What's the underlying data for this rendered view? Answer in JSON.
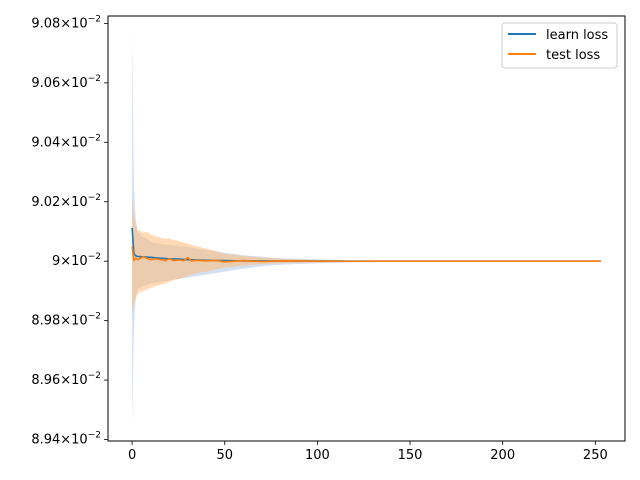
{
  "chart_data": {
    "type": "line",
    "title": "",
    "xlabel": "",
    "ylabel": "",
    "xlim": [
      -13,
      266
    ],
    "ylim": [
      0.089395,
      0.090825
    ],
    "xticks": [
      0,
      50,
      100,
      150,
      200,
      250
    ],
    "xtick_labels": [
      "0",
      "50",
      "100",
      "150",
      "200",
      "250"
    ],
    "yticks": [
      0.0894,
      0.0896,
      0.0898,
      0.09,
      0.0902,
      0.0904,
      0.0906,
      0.0908
    ],
    "ytick_labels": [
      {
        "mantissa": "8.94",
        "exp": "−2"
      },
      {
        "mantissa": "8.96",
        "exp": "−2"
      },
      {
        "mantissa": "8.98",
        "exp": "−2"
      },
      {
        "mantissa": "9",
        "exp": "−2"
      },
      {
        "mantissa": "9.02",
        "exp": "−2"
      },
      {
        "mantissa": "9.04",
        "exp": "−2"
      },
      {
        "mantissa": "9.06",
        "exp": "−2"
      },
      {
        "mantissa": "9.08",
        "exp": "−2"
      }
    ],
    "ytick_base": "10",
    "y_times": "×",
    "grid": false,
    "legend": "top-right",
    "series": [
      {
        "name": "learn loss",
        "color": "#1f77b4",
        "band_color": "#aec7e8",
        "x": [
          0,
          1,
          2,
          3,
          5,
          8,
          10,
          15,
          20,
          25,
          30,
          40,
          50,
          60,
          70,
          80,
          100,
          120,
          150,
          200,
          253
        ],
        "y": [
          0.090112,
          0.090025,
          0.090018,
          0.090016,
          0.090015,
          0.090014,
          0.090013,
          0.09001,
          0.090008,
          0.090007,
          0.090005,
          0.090003,
          0.090002,
          0.090001,
          0.0900008,
          0.0900005,
          0.0900003,
          0.0900001,
          0.09,
          0.09,
          0.09
        ],
        "upper": [
          0.090772,
          0.09025,
          0.09014,
          0.090105,
          0.090085,
          0.090075,
          0.090065,
          0.090058,
          0.090055,
          0.090052,
          0.090048,
          0.090038,
          0.090028,
          0.09002,
          0.090015,
          0.09001,
          0.090006,
          0.090003,
          0.0900015,
          0.0900005,
          0.0900002
        ],
        "lower": [
          0.089442,
          0.08978,
          0.08988,
          0.089905,
          0.089915,
          0.08992,
          0.089925,
          0.08993,
          0.089935,
          0.08994,
          0.089945,
          0.089955,
          0.089965,
          0.089975,
          0.089983,
          0.089988,
          0.089993,
          0.089996,
          0.0899985,
          0.0899995,
          0.0899998
        ]
      },
      {
        "name": "test loss",
        "color": "#ff7f0e",
        "band_color": "#ffbb78",
        "x": [
          0,
          1,
          2,
          3,
          4,
          6,
          8,
          10,
          12,
          15,
          18,
          20,
          22,
          25,
          28,
          30,
          32,
          35,
          40,
          45,
          50,
          60,
          70,
          80,
          100,
          120,
          150,
          200,
          253
        ],
        "y": [
          0.09005,
          0.090003,
          0.09001,
          0.090005,
          0.090008,
          0.090015,
          0.09001,
          0.090005,
          0.090008,
          0.090006,
          0.090002,
          0.090008,
          0.090003,
          0.090004,
          0.090002,
          0.090012,
          0.090001,
          0.090003,
          0.090001,
          0.090003,
          0.089998,
          0.090002,
          0.089999,
          0.090001,
          0.0900002,
          0.0899998,
          0.09,
          0.09,
          0.09
        ],
        "upper": [
          0.09022,
          0.09015,
          0.09012,
          0.0901,
          0.090105,
          0.090095,
          0.0901,
          0.09009,
          0.090085,
          0.09008,
          0.090075,
          0.090078,
          0.090072,
          0.090068,
          0.090062,
          0.09006,
          0.090055,
          0.09005,
          0.090042,
          0.090035,
          0.090025,
          0.090018,
          0.090012,
          0.090008,
          0.090004,
          0.0900025,
          0.0900012,
          0.0900005,
          0.0900002
        ],
        "lower": [
          0.08983,
          0.08986,
          0.089875,
          0.08989,
          0.089895,
          0.0899,
          0.089905,
          0.08991,
          0.089915,
          0.08992,
          0.089925,
          0.08993,
          0.089935,
          0.08994,
          0.089945,
          0.08995,
          0.089955,
          0.08996,
          0.089965,
          0.089972,
          0.089978,
          0.089985,
          0.08999,
          0.089993,
          0.089996,
          0.0899975,
          0.0899988,
          0.0899995,
          0.0899998
        ]
      }
    ]
  }
}
